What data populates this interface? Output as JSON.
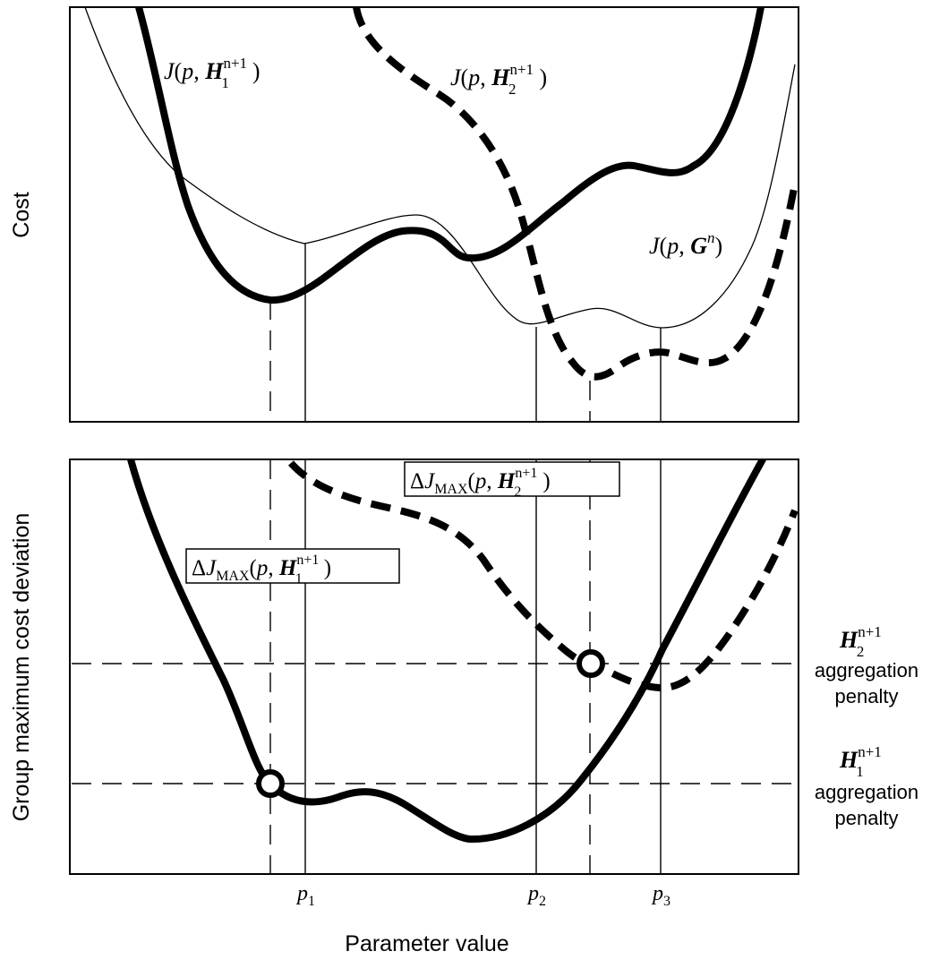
{
  "axes": {
    "top_ylabel": "Cost",
    "bottom_ylabel": "Group maximum cost deviation",
    "xlabel": "Parameter value"
  },
  "ticks": [
    {
      "base": "p",
      "sub": "1"
    },
    {
      "base": "p",
      "sub": "2"
    },
    {
      "base": "p",
      "sub": "3"
    }
  ],
  "curve_labels": {
    "j_h1": {
      "func": "J",
      "param": "p",
      "bold": "H",
      "sub": "1",
      "sup": "n+1"
    },
    "j_h2": {
      "func": "J",
      "param": "p",
      "bold": "H",
      "sub": "2",
      "sup": "n+1"
    },
    "j_g": {
      "func": "J",
      "param": "p",
      "bold": "G",
      "sup": "n"
    },
    "dj_h1": {
      "delta": "Δ",
      "func": "J",
      "sub_func": "MAX",
      "param": "p",
      "bold": "H",
      "sub": "1",
      "sup": "n+1"
    },
    "dj_h2": {
      "delta": "Δ",
      "func": "J",
      "sub_func": "MAX",
      "param": "p",
      "bold": "H",
      "sub": "2",
      "sup": "n+1"
    }
  },
  "penalties": {
    "h2": {
      "bold": "H",
      "sub": "2",
      "sup": "n+1",
      "line1": "aggregation",
      "line2": "penalty"
    },
    "h1": {
      "bold": "H",
      "sub": "1",
      "sup": "n+1",
      "line1": "aggregation",
      "line2": "penalty"
    }
  }
}
